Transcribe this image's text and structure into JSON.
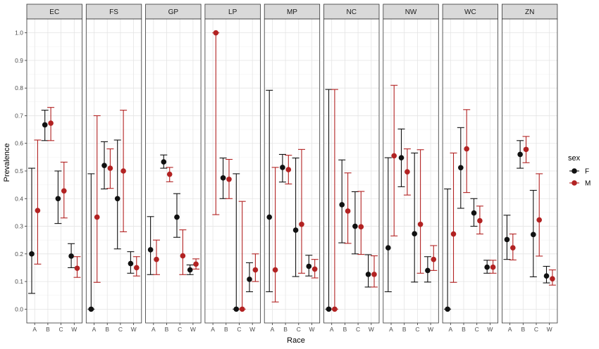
{
  "chart_data": {
    "type": "scatter",
    "subtype": "point-range-facets",
    "xlabel": "Race",
    "ylabel": "Prevalence",
    "ylim": [
      -0.05,
      1.05
    ],
    "yticks": [
      0.0,
      0.1,
      0.2,
      0.3,
      0.4,
      0.5,
      0.6,
      0.7,
      0.8,
      0.9,
      1.0
    ],
    "ytick_labels": [
      "0.0",
      "0.1",
      "0.2",
      "0.3",
      "0.4",
      "0.5",
      "0.6",
      "0.7",
      "0.8",
      "0.9",
      "1.0"
    ],
    "categories": [
      "A",
      "B",
      "C",
      "W"
    ],
    "grid": true,
    "legend": {
      "title": "sex",
      "position": "right",
      "entries": [
        {
          "name": "F",
          "color": "#111111"
        },
        {
          "name": "M",
          "color": "#b22222"
        }
      ]
    },
    "panels": [
      {
        "label": "EC",
        "series": [
          {
            "name": "F",
            "values": [
              0.2,
              0.667,
              0.4,
              0.192
            ],
            "lower": [
              0.057,
              0.61,
              0.31,
              0.15
            ],
            "upper": [
              0.51,
              0.72,
              0.5,
              0.237
            ]
          },
          {
            "name": "M",
            "values": [
              0.357,
              0.673,
              0.428,
              0.148
            ],
            "lower": [
              0.163,
              0.61,
              0.33,
              0.115
            ],
            "upper": [
              0.612,
              0.73,
              0.532,
              0.19
            ]
          }
        ]
      },
      {
        "label": "FS",
        "series": [
          {
            "name": "F",
            "values": [
              0.0,
              0.52,
              0.4,
              0.165
            ],
            "lower": [
              0.0,
              0.435,
              0.218,
              0.13
            ],
            "upper": [
              0.49,
              0.606,
              0.612,
              0.208
            ]
          },
          {
            "name": "M",
            "values": [
              0.333,
              0.51,
              0.5,
              0.15
            ],
            "lower": [
              0.097,
              0.437,
              0.28,
              0.12
            ],
            "upper": [
              0.7,
              0.58,
              0.72,
              0.19
            ]
          }
        ]
      },
      {
        "label": "GP",
        "series": [
          {
            "name": "F",
            "values": [
              0.215,
              0.533,
              0.333,
              0.142
            ],
            "lower": [
              0.125,
              0.51,
              0.26,
              0.125
            ],
            "upper": [
              0.335,
              0.558,
              0.418,
              0.16
            ]
          },
          {
            "name": "M",
            "values": [
              0.18,
              0.488,
              0.193,
              0.163
            ],
            "lower": [
              0.125,
              0.461,
              0.125,
              0.145
            ],
            "upper": [
              0.25,
              0.513,
              0.287,
              0.182
            ]
          }
        ]
      },
      {
        "label": "LP",
        "series": [
          {
            "name": "F",
            "values": [
              null,
              0.475,
              0.0,
              0.108
            ],
            "lower": [
              null,
              0.4,
              0.0,
              0.063
            ],
            "upper": [
              null,
              0.547,
              0.49,
              0.168
            ]
          },
          {
            "name": "M",
            "values": [
              1.0,
              0.47,
              0.0,
              0.142
            ],
            "lower": [
              0.342,
              0.4,
              0.0,
              0.1
            ],
            "upper": [
              1.0,
              0.542,
              0.39,
              0.2
            ]
          }
        ]
      },
      {
        "label": "MP",
        "series": [
          {
            "name": "F",
            "values": [
              0.333,
              0.513,
              0.286,
              0.155
            ],
            "lower": [
              0.063,
              0.46,
              0.118,
              0.12
            ],
            "upper": [
              0.792,
              0.56,
              0.547,
              0.195
            ]
          },
          {
            "name": "M",
            "values": [
              0.142,
              0.505,
              0.307,
              0.145
            ],
            "lower": [
              0.026,
              0.453,
              0.13,
              0.113
            ],
            "upper": [
              0.513,
              0.557,
              0.578,
              0.18
            ]
          }
        ]
      },
      {
        "label": "NC",
        "series": [
          {
            "name": "F",
            "values": [
              0.0,
              0.378,
              0.3,
              0.126
            ],
            "lower": [
              0.0,
              0.24,
              0.2,
              0.08
            ],
            "upper": [
              0.795,
              0.54,
              0.425,
              0.197
            ]
          },
          {
            "name": "M",
            "values": [
              0.0,
              0.355,
              0.298,
              0.126
            ],
            "lower": [
              0.0,
              0.238,
              0.198,
              0.08
            ],
            "upper": [
              0.795,
              0.493,
              0.426,
              0.193
            ]
          }
        ]
      },
      {
        "label": "NW",
        "series": [
          {
            "name": "F",
            "values": [
              0.222,
              0.548,
              0.273,
              0.14
            ],
            "lower": [
              0.063,
              0.443,
              0.098,
              0.098
            ],
            "upper": [
              0.548,
              0.652,
              0.565,
              0.19
            ]
          },
          {
            "name": "M",
            "values": [
              0.555,
              0.497,
              0.307,
              0.18
            ],
            "lower": [
              0.265,
              0.413,
              0.13,
              0.14
            ],
            "upper": [
              0.81,
              0.58,
              0.577,
              0.23
            ]
          }
        ]
      },
      {
        "label": "WC",
        "series": [
          {
            "name": "F",
            "values": [
              0.0,
              0.512,
              0.348,
              0.152
            ],
            "lower": [
              0.0,
              0.365,
              0.3,
              0.13
            ],
            "upper": [
              0.435,
              0.657,
              0.4,
              0.177
            ]
          },
          {
            "name": "M",
            "values": [
              0.272,
              0.58,
              0.32,
              0.152
            ],
            "lower": [
              0.097,
              0.422,
              0.272,
              0.13
            ],
            "upper": [
              0.565,
              0.722,
              0.373,
              0.177
            ]
          }
        ]
      },
      {
        "label": "ZN",
        "series": [
          {
            "name": "F",
            "values": [
              0.252,
              0.56,
              0.27,
              0.12
            ],
            "lower": [
              0.18,
              0.51,
              0.117,
              0.095
            ],
            "upper": [
              0.34,
              0.61,
              0.43,
              0.155
            ]
          },
          {
            "name": "M",
            "values": [
              0.222,
              0.578,
              0.323,
              0.11
            ],
            "lower": [
              0.178,
              0.53,
              0.192,
              0.087
            ],
            "upper": [
              0.272,
              0.625,
              0.49,
              0.142
            ]
          }
        ]
      }
    ]
  }
}
